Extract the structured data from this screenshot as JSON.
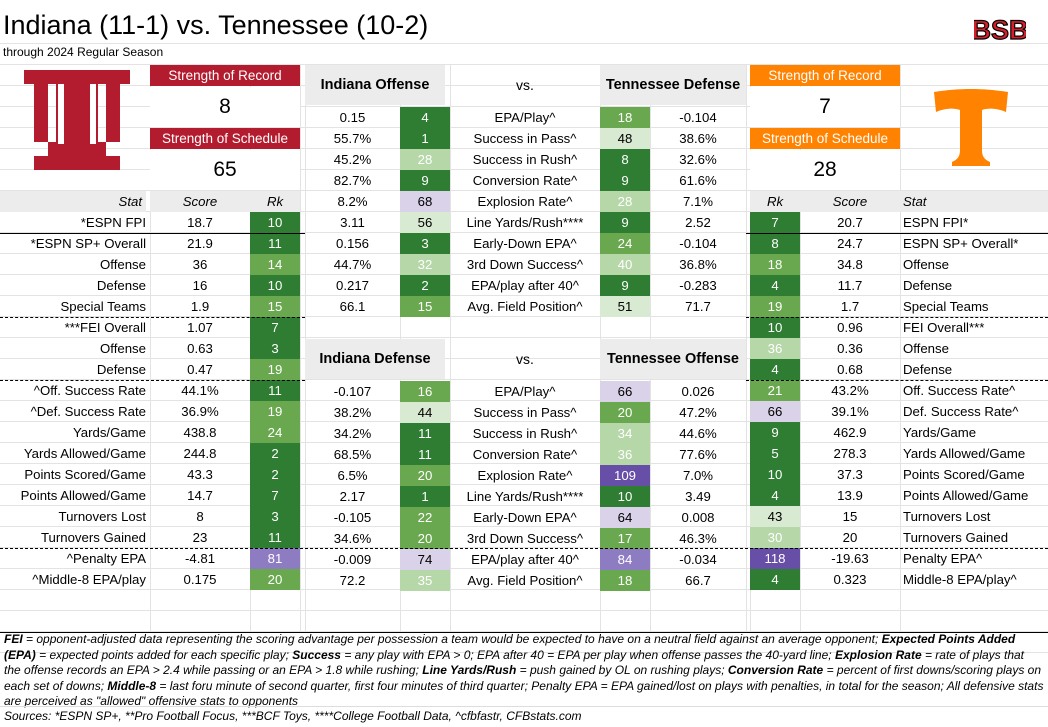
{
  "header": {
    "title": "Indiana (11-1) vs. Tennessee (10-2)",
    "subtitle": "through 2024 Regular Season",
    "brand": "BSB"
  },
  "colors": {
    "indiana": "#b31b2e",
    "tennessee": "#ff8200",
    "rank_dark": "#2f7d32",
    "rank_mid": "#6aa84f",
    "rank_light": "#b6d7a8",
    "rank_pale": "#d9ead3",
    "rank_lav": "#d9d2e9",
    "rank_purple": "#8e7cc3",
    "rank_deep_purple": "#674ea7"
  },
  "left_box": {
    "sor_label": "Strength of Record",
    "sor_value": "8",
    "sos_label": "Strength of Schedule",
    "sos_value": "65"
  },
  "right_box": {
    "sor_label": "Strength of Record",
    "sor_value": "7",
    "sos_label": "Strength of Schedule",
    "sos_value": "28"
  },
  "matchup1": {
    "left": "Indiana Offense",
    "mid": "vs.",
    "right": "Tennessee Defense"
  },
  "matchup2": {
    "left": "Indiana Defense",
    "mid": "vs.",
    "right": "Tennessee Offense"
  },
  "col_headers": {
    "left_stat": "Stat",
    "left_score": "Score",
    "left_rk": "Rk",
    "right_rk": "Rk",
    "right_score": "Score",
    "right_stat": "Stat"
  },
  "matchup_rows": [
    {
      "a": "0.15",
      "ark": "4",
      "label": "EPA/Play^",
      "brk": "18",
      "b": "-0.104"
    },
    {
      "a": "55.7%",
      "ark": "1",
      "label": "Success in Pass^",
      "brk": "48",
      "b": "38.6%"
    },
    {
      "a": "45.2%",
      "ark": "28",
      "label": "Success in Rush^",
      "brk": "8",
      "b": "32.6%"
    },
    {
      "a": "82.7%",
      "ark": "9",
      "label": "Conversion Rate^",
      "brk": "9",
      "b": "61.6%"
    },
    {
      "a": "8.2%",
      "ark": "68",
      "label": "Explosion Rate^",
      "brk": "28",
      "b": "7.1%"
    },
    {
      "a": "3.11",
      "ark": "56",
      "label": "Line Yards/Rush****",
      "brk": "9",
      "b": "2.52"
    },
    {
      "a": "0.156",
      "ark": "3",
      "label": "Early-Down EPA^",
      "brk": "24",
      "b": "-0.104"
    },
    {
      "a": "44.7%",
      "ark": "32",
      "label": "3rd Down Success^",
      "brk": "40",
      "b": "36.8%"
    },
    {
      "a": "0.217",
      "ark": "2",
      "label": "EPA/play after 40^",
      "brk": "9",
      "b": "-0.283"
    },
    {
      "a": "66.1",
      "ark": "15",
      "label": "Avg. Field Position^",
      "brk": "51",
      "b": "71.7"
    },
    {
      "a": "-0.107",
      "ark": "16",
      "label": "EPA/Play^",
      "brk": "66",
      "b": "0.026"
    },
    {
      "a": "38.2%",
      "ark": "44",
      "label": "Success in Pass^",
      "brk": "20",
      "b": "47.2%"
    },
    {
      "a": "34.2%",
      "ark": "11",
      "label": "Success in Rush^",
      "brk": "34",
      "b": "44.6%"
    },
    {
      "a": "68.5%",
      "ark": "11",
      "label": "Conversion Rate^",
      "brk": "36",
      "b": "77.6%"
    },
    {
      "a": "6.5%",
      "ark": "20",
      "label": "Explosion Rate^",
      "brk": "109",
      "b": "7.0%"
    },
    {
      "a": "2.17",
      "ark": "1",
      "label": "Line Yards/Rush****",
      "brk": "10",
      "b": "3.49"
    },
    {
      "a": "-0.105",
      "ark": "22",
      "label": "Early-Down EPA^",
      "brk": "64",
      "b": "0.008"
    },
    {
      "a": "34.6%",
      "ark": "20",
      "label": "3rd Down Success^",
      "brk": "17",
      "b": "46.3%"
    },
    {
      "a": "-0.009",
      "ark": "74",
      "label": "EPA/play after 40^",
      "brk": "84",
      "b": "-0.034"
    },
    {
      "a": "72.2",
      "ark": "35",
      "label": "Avg. Field Position^",
      "brk": "18",
      "b": "66.7"
    }
  ],
  "left_rows": [
    {
      "stat": "*ESPN FPI",
      "score": "18.7",
      "rk": "10"
    },
    {
      "stat": "*ESPN SP+ Overall",
      "score": "21.9",
      "rk": "11"
    },
    {
      "stat": "Offense",
      "score": "36",
      "rk": "14"
    },
    {
      "stat": "Defense",
      "score": "16",
      "rk": "10"
    },
    {
      "stat": "Special Teams",
      "score": "1.9",
      "rk": "15"
    },
    {
      "stat": "***FEI Overall",
      "score": "1.07",
      "rk": "7"
    },
    {
      "stat": "Offense",
      "score": "0.63",
      "rk": "3"
    },
    {
      "stat": "Defense",
      "score": "0.47",
      "rk": "19"
    },
    {
      "stat": "^Off. Success Rate",
      "score": "44.1%",
      "rk": "11"
    },
    {
      "stat": "^Def. Success Rate",
      "score": "36.9%",
      "rk": "19"
    },
    {
      "stat": "Yards/Game",
      "score": "438.8",
      "rk": "24"
    },
    {
      "stat": "Yards Allowed/Game",
      "score": "244.8",
      "rk": "2"
    },
    {
      "stat": "Points Scored/Game",
      "score": "43.3",
      "rk": "2"
    },
    {
      "stat": "Points Allowed/Game",
      "score": "14.7",
      "rk": "7"
    },
    {
      "stat": "Turnovers Lost",
      "score": "8",
      "rk": "3"
    },
    {
      "stat": "Turnovers Gained",
      "score": "23",
      "rk": "11"
    },
    {
      "stat": "^Penalty EPA",
      "score": "-4.81",
      "rk": "81"
    },
    {
      "stat": "^Middle-8 EPA/play",
      "score": "0.175",
      "rk": "20"
    }
  ],
  "right_rows": [
    {
      "rk": "7",
      "score": "20.7",
      "stat": "ESPN FPI*"
    },
    {
      "rk": "8",
      "score": "24.7",
      "stat": "ESPN SP+ Overall*"
    },
    {
      "rk": "18",
      "score": "34.8",
      "stat": "Offense"
    },
    {
      "rk": "4",
      "score": "11.7",
      "stat": "Defense"
    },
    {
      "rk": "19",
      "score": "1.7",
      "stat": "Special Teams"
    },
    {
      "rk": "10",
      "score": "0.96",
      "stat": "FEI Overall***"
    },
    {
      "rk": "36",
      "score": "0.36",
      "stat": "Offense"
    },
    {
      "rk": "4",
      "score": "0.68",
      "stat": "Defense"
    },
    {
      "rk": "21",
      "score": "43.2%",
      "stat": "Off. Success Rate^"
    },
    {
      "rk": "66",
      "score": "39.1%",
      "stat": "Def. Success Rate^"
    },
    {
      "rk": "9",
      "score": "462.9",
      "stat": "Yards/Game"
    },
    {
      "rk": "5",
      "score": "278.3",
      "stat": "Yards Allowed/Game"
    },
    {
      "rk": "10",
      "score": "37.3",
      "stat": "Points Scored/Game"
    },
    {
      "rk": "4",
      "score": "13.9",
      "stat": "Points Allowed/Game"
    },
    {
      "rk": "43",
      "score": "15",
      "stat": "Turnovers Lost"
    },
    {
      "rk": "30",
      "score": "20",
      "stat": "Turnovers Gained"
    },
    {
      "rk": "118",
      "score": "-19.63",
      "stat": "Penalty EPA^"
    },
    {
      "rk": "4",
      "score": "0.323",
      "stat": "Middle-8 EPA/play^"
    }
  ],
  "footnote": {
    "t1": "FEI",
    "t2": " = opponent-adjusted data representing the scoring advantage per possession a team would be expected to have on a neutral field against an average opponent; ",
    "t3": "Expected Points Added (EPA)",
    "t4": " = expected points added for each specific play; ",
    "t5": "Success",
    "t6": " = any play with EPA > 0; EPA after 40 = EPA per play when offense passes the 40-yard line; ",
    "t7": "Explosion Rate",
    "t8": " = rate of plays that the offense records an EPA > 2.4 while passing or an EPA > 1.8 while rushing; ",
    "t9": "Line Yards/Rush",
    "t10": " = push gained by OL on rushing plays; ",
    "t11": "Conversion Rate",
    "t12": " = percent of first downs/scoring plays on each set of downs; ",
    "t13": "Middle-8",
    "t14": " = last foru minute of second quarter, first four minutes of third quarter; Penalty EPA = EPA gained/lost on plays with penalties, in total for the season; All defensive stats are perceived as \"allowed\" offensive stats to opponents"
  },
  "sources": "Sources:  *ESPN SP+, **Pro Football Focus, ***BCF Toys, ****College Football Data, ^cfbfastr, CFBstats.com"
}
